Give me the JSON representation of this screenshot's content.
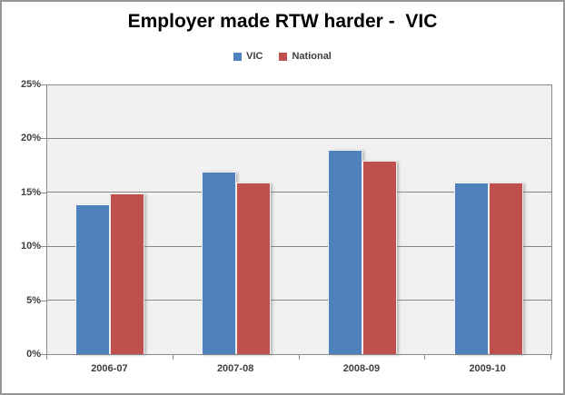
{
  "chart_title": "Employer made RTW harder -  VIC",
  "colors": {
    "vic_series": "#4f81bc",
    "national_series": "#c0504d",
    "plot_background": "#f1f1f1",
    "gridline": "#898989",
    "axis_line": "#898989",
    "chart_border": "#969696",
    "label_text": "#3f3f3f",
    "title_text": "#000000"
  },
  "chart_data": {
    "type": "bar",
    "title": "Employer made RTW harder -  VIC",
    "categories": [
      "2006-07",
      "2007-08",
      "2008-09",
      "2009-10"
    ],
    "series": [
      {
        "name": "VIC",
        "color": "#4f81bc",
        "values": [
          13.9,
          16.9,
          18.9,
          15.9
        ]
      },
      {
        "name": "National",
        "color": "#c0504d",
        "values": [
          14.9,
          15.9,
          17.9,
          15.9
        ]
      }
    ],
    "xlabel": "",
    "ylabel": "",
    "ylim": [
      0,
      25
    ],
    "ytick_step": 5,
    "ytick_labels": [
      "0%",
      "5%",
      "10%",
      "15%",
      "20%",
      "25%"
    ],
    "grid": "horizontal",
    "legend_position": "top-center"
  }
}
